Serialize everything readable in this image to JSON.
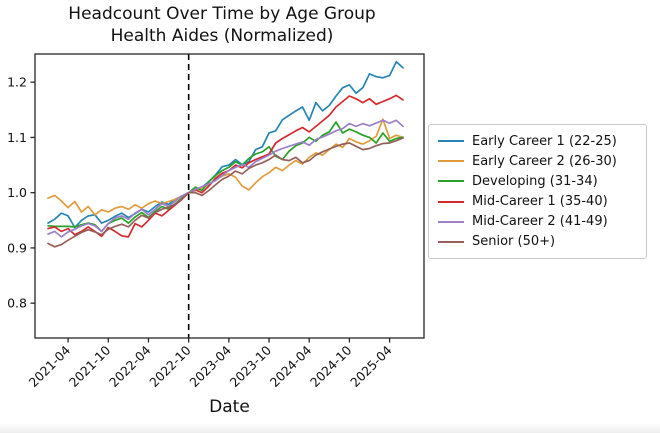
{
  "chart_data": {
    "type": "line",
    "title": "Headcount Over Time by Age Group",
    "subtitle": "Health Aides (Normalized)",
    "xlabel": "Date",
    "ylabel": "",
    "grid": false,
    "legend_position": "right-outside",
    "ylim": [
      0.737,
      1.251
    ],
    "y_ticks": [
      "0.8",
      "0.9",
      "1.0",
      "1.1",
      "1.2"
    ],
    "x_tick_labels": [
      "2021-04",
      "2021-10",
      "2022-04",
      "2022-10",
      "2023-04",
      "2023-10",
      "2024-04",
      "2024-10",
      "2025-04"
    ],
    "vline": {
      "x": "2022-10",
      "style": "dashed",
      "color": "#000000"
    },
    "x": [
      "2021-01",
      "2021-02",
      "2021-03",
      "2021-04",
      "2021-05",
      "2021-06",
      "2021-07",
      "2021-08",
      "2021-09",
      "2021-10",
      "2021-11",
      "2021-12",
      "2022-01",
      "2022-02",
      "2022-03",
      "2022-04",
      "2022-05",
      "2022-06",
      "2022-07",
      "2022-08",
      "2022-09",
      "2022-10",
      "2022-11",
      "2022-12",
      "2023-01",
      "2023-02",
      "2023-03",
      "2023-04",
      "2023-05",
      "2023-06",
      "2023-07",
      "2023-08",
      "2023-09",
      "2023-10",
      "2023-11",
      "2023-12",
      "2024-01",
      "2024-02",
      "2024-03",
      "2024-04",
      "2024-05",
      "2024-06",
      "2024-07",
      "2024-08",
      "2024-09",
      "2024-10",
      "2024-11",
      "2024-12",
      "2025-01",
      "2025-02",
      "2025-03",
      "2025-04",
      "2025-05",
      "2025-06"
    ],
    "series": [
      {
        "name": "Early Career 1 (22-25)",
        "color": "#2585b4",
        "values": [
          0.945,
          0.952,
          0.963,
          0.958,
          0.937,
          0.95,
          0.958,
          0.96,
          0.945,
          0.95,
          0.957,
          0.963,
          0.955,
          0.962,
          0.97,
          0.965,
          0.975,
          0.983,
          0.979,
          0.988,
          0.994,
          1.0,
          1.004,
          1.01,
          1.02,
          1.032,
          1.047,
          1.05,
          1.06,
          1.051,
          1.056,
          1.078,
          1.083,
          1.108,
          1.112,
          1.132,
          1.14,
          1.148,
          1.155,
          1.131,
          1.163,
          1.148,
          1.158,
          1.175,
          1.19,
          1.195,
          1.18,
          1.19,
          1.215,
          1.21,
          1.208,
          1.212,
          1.237,
          1.226
        ]
      },
      {
        "name": "Early Career 2 (26-30)",
        "color": "#e09c3c",
        "values": [
          0.99,
          0.995,
          0.985,
          0.973,
          0.984,
          0.965,
          0.975,
          0.96,
          0.969,
          0.965,
          0.972,
          0.975,
          0.97,
          0.978,
          0.972,
          0.98,
          0.985,
          0.98,
          0.984,
          0.988,
          0.993,
          1.0,
          1.004,
          1.009,
          1.014,
          1.024,
          1.03,
          1.034,
          1.028,
          1.012,
          1.005,
          1.018,
          1.029,
          1.036,
          1.046,
          1.04,
          1.05,
          1.058,
          1.052,
          1.064,
          1.072,
          1.068,
          1.078,
          1.088,
          1.082,
          1.098,
          1.092,
          1.088,
          1.094,
          1.102,
          1.133,
          1.098,
          1.104,
          1.1
        ]
      },
      {
        "name": "Developing (31-34)",
        "color": "#27a127",
        "values": [
          0.94,
          0.939,
          0.939,
          0.939,
          0.938,
          0.942,
          0.945,
          0.942,
          0.93,
          0.944,
          0.95,
          0.954,
          0.945,
          0.956,
          0.964,
          0.955,
          0.966,
          0.975,
          0.97,
          0.98,
          0.99,
          1.0,
          1.01,
          1.004,
          1.02,
          1.031,
          1.04,
          1.046,
          1.056,
          1.05,
          1.062,
          1.07,
          1.074,
          1.083,
          1.066,
          1.06,
          1.075,
          1.085,
          1.09,
          1.1,
          1.093,
          1.104,
          1.11,
          1.128,
          1.108,
          1.115,
          1.11,
          1.104,
          1.1,
          1.09,
          1.108,
          1.093,
          1.098,
          1.1
        ]
      },
      {
        "name": "Mid-Career 1 (35-40)",
        "color": "#d42a2e",
        "values": [
          0.935,
          0.938,
          0.93,
          0.935,
          0.924,
          0.93,
          0.938,
          0.93,
          0.921,
          0.937,
          0.93,
          0.922,
          0.92,
          0.944,
          0.938,
          0.95,
          0.963,
          0.958,
          0.968,
          0.978,
          0.988,
          1.0,
          1.005,
          1.0,
          1.012,
          1.026,
          1.035,
          1.04,
          1.05,
          1.045,
          1.054,
          1.06,
          1.065,
          1.07,
          1.09,
          1.098,
          1.105,
          1.112,
          1.118,
          1.11,
          1.12,
          1.13,
          1.14,
          1.155,
          1.165,
          1.175,
          1.17,
          1.163,
          1.17,
          1.16,
          1.165,
          1.17,
          1.176,
          1.168
        ]
      },
      {
        "name": "Mid-Career 2 (41-49)",
        "color": "#9b7fc7",
        "values": [
          0.925,
          0.93,
          0.92,
          0.929,
          0.934,
          0.94,
          0.944,
          0.94,
          0.93,
          0.944,
          0.954,
          0.958,
          0.952,
          0.963,
          0.97,
          0.96,
          0.97,
          0.98,
          0.975,
          0.985,
          0.994,
          1.0,
          1.006,
          1.011,
          1.016,
          1.022,
          1.031,
          1.04,
          1.046,
          1.051,
          1.046,
          1.056,
          1.062,
          1.068,
          1.075,
          1.08,
          1.084,
          1.088,
          1.092,
          1.086,
          1.096,
          1.101,
          1.106,
          1.112,
          1.116,
          1.125,
          1.12,
          1.125,
          1.121,
          1.126,
          1.131,
          1.126,
          1.131,
          1.12
        ]
      },
      {
        "name": "Senior (50+)",
        "color": "#96605a",
        "values": [
          0.908,
          0.902,
          0.906,
          0.914,
          0.921,
          0.928,
          0.933,
          0.929,
          0.924,
          0.934,
          0.939,
          0.943,
          0.938,
          0.95,
          0.959,
          0.954,
          0.964,
          0.97,
          0.974,
          0.979,
          0.989,
          1.0,
          1.0,
          0.995,
          1.004,
          1.014,
          1.024,
          1.03,
          1.039,
          1.034,
          1.044,
          1.05,
          1.054,
          1.06,
          1.068,
          1.06,
          1.058,
          1.064,
          1.054,
          1.058,
          1.068,
          1.074,
          1.079,
          1.084,
          1.088,
          1.09,
          1.084,
          1.078,
          1.08,
          1.085,
          1.089,
          1.09,
          1.094,
          1.099
        ]
      }
    ]
  }
}
